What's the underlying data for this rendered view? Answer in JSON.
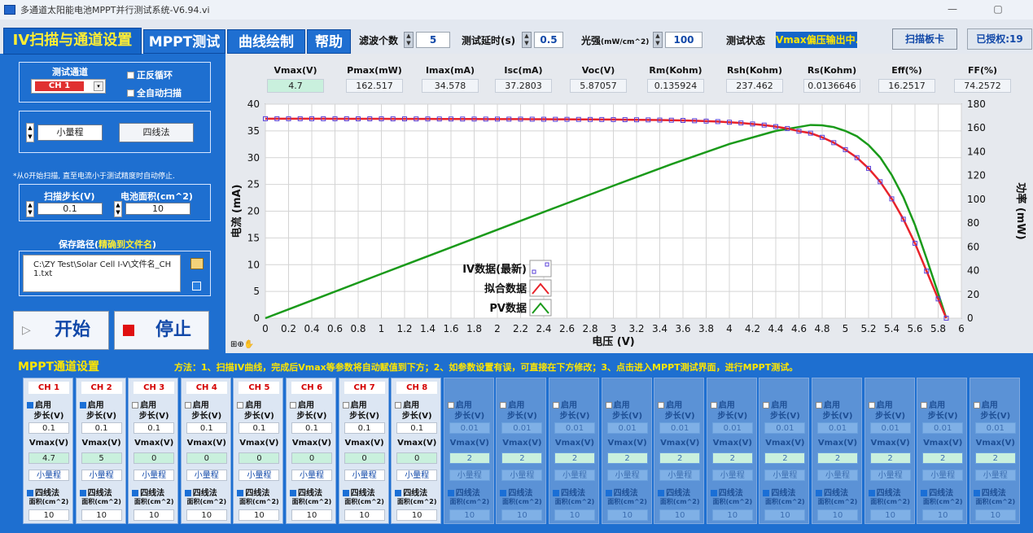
{
  "window": {
    "title": "多通道太阳能电池MPPT并行测试系统-V6.94.vi"
  },
  "tabs": [
    "IV扫描与通道设置",
    "MPPT测试",
    "曲线绘制",
    "帮助"
  ],
  "toolbar": {
    "filter_label": "滤波个数",
    "filter_value": "5",
    "delay_label": "测试延时(s)",
    "delay_value": "0.5",
    "light_label": "光强",
    "light_unit": "(mW/cm^2)",
    "light_value": "100",
    "status_label": "测试状态",
    "status_value": "Vmax偏压输出中..",
    "scan_button": "扫描板卡",
    "authorized": "已授权:19"
  },
  "left": {
    "channel_label": "测试通道",
    "channel_value": "CH 1",
    "cyc_label": "正反循环",
    "auto_label": "全自动扫描",
    "range_value": "小量程",
    "wire_button": "四线法",
    "note": "*从0开始扫描, 直至电流小于测试精度时自动停止.",
    "step_label": "扫描步长(V)",
    "step_value": "0.1",
    "area_label": "电池面积(cm^2)",
    "area_value": "10",
    "path_label": "保存路径(",
    "path_label_em": "精确到文件名",
    "path_label_end": ")",
    "path_value": "C:\\ZY Test\\Solar Cell I-V\\文件名_CH1.txt",
    "start_label": "开始",
    "stop_label": "停止"
  },
  "params": {
    "headers": [
      "Vmax(V)",
      "Pmax(mW)",
      "Imax(mA)",
      "Isc(mA)",
      "Voc(V)",
      "Rm(Kohm)",
      "Rsh(Kohm)",
      "Rs(Kohm)",
      "Eff(%)",
      "FF(%)"
    ],
    "values": [
      "4.7",
      "162.517",
      "34.578",
      "37.2803",
      "5.87057",
      "0.135924",
      "237.462",
      "0.0136646",
      "16.2517",
      "74.2572"
    ]
  },
  "chart_data": {
    "type": "line",
    "xlabel": "电压 (V)",
    "ylabel": "电流 (mA)",
    "y2label": "功率 (mW)",
    "xlim": [
      0,
      6
    ],
    "ylim": [
      0,
      40
    ],
    "y2lim": [
      0,
      180
    ],
    "x_ticks": [
      "0",
      "0.2",
      "0.4",
      "0.6",
      "0.8",
      "1",
      "1.2",
      "1.4",
      "1.6",
      "1.8",
      "2",
      "2.2",
      "2.4",
      "2.6",
      "2.8",
      "3",
      "3.2",
      "3.4",
      "3.6",
      "3.8",
      "4",
      "4.2",
      "4.4",
      "4.6",
      "4.8",
      "5",
      "5.2",
      "5.4",
      "5.6",
      "5.8",
      "6"
    ],
    "y_ticks": [
      "0",
      "5",
      "10",
      "15",
      "20",
      "25",
      "30",
      "35",
      "40"
    ],
    "y2_ticks": [
      "0",
      "20",
      "40",
      "60",
      "80",
      "100",
      "120",
      "140",
      "160",
      "180"
    ],
    "grid": true,
    "legend": [
      "IV数据(最新)",
      "拟合数据",
      "PV数据"
    ],
    "series_colors": {
      "iv": "#5a40d8",
      "fit": "#e8232a",
      "pv": "#1a9a1a"
    },
    "iv_points": [
      [
        0,
        37.28
      ],
      [
        0.1,
        37.28
      ],
      [
        0.2,
        37.28
      ],
      [
        0.3,
        37.28
      ],
      [
        0.4,
        37.28
      ],
      [
        0.5,
        37.28
      ],
      [
        0.6,
        37.27
      ],
      [
        0.7,
        37.27
      ],
      [
        0.8,
        37.26
      ],
      [
        0.9,
        37.26
      ],
      [
        1.0,
        37.26
      ],
      [
        1.1,
        37.25
      ],
      [
        1.2,
        37.25
      ],
      [
        1.3,
        37.24
      ],
      [
        1.4,
        37.24
      ],
      [
        1.5,
        37.23
      ],
      [
        1.6,
        37.23
      ],
      [
        1.7,
        37.22
      ],
      [
        1.8,
        37.22
      ],
      [
        1.9,
        37.21
      ],
      [
        2.0,
        37.21
      ],
      [
        2.1,
        37.2
      ],
      [
        2.2,
        37.2
      ],
      [
        2.3,
        37.19
      ],
      [
        2.4,
        37.18
      ],
      [
        2.5,
        37.17
      ],
      [
        2.6,
        37.16
      ],
      [
        2.7,
        37.15
      ],
      [
        2.8,
        37.14
      ],
      [
        2.9,
        37.13
      ],
      [
        3.0,
        37.12
      ],
      [
        3.1,
        37.1
      ],
      [
        3.2,
        37.08
      ],
      [
        3.3,
        37.06
      ],
      [
        3.4,
        37.03
      ],
      [
        3.5,
        37.0
      ],
      [
        3.6,
        36.96
      ],
      [
        3.7,
        36.9
      ],
      [
        3.8,
        36.83
      ],
      [
        3.9,
        36.74
      ],
      [
        4.0,
        36.62
      ],
      [
        4.1,
        36.48
      ],
      [
        4.2,
        36.3
      ],
      [
        4.3,
        36.09
      ],
      [
        4.4,
        35.8
      ],
      [
        4.5,
        35.45
      ],
      [
        4.6,
        34.95
      ],
      [
        4.7,
        34.58
      ],
      [
        4.8,
        33.8
      ],
      [
        4.9,
        32.8
      ],
      [
        5.0,
        31.5
      ],
      [
        5.1,
        30.0
      ],
      [
        5.2,
        28.0
      ],
      [
        5.3,
        25.5
      ],
      [
        5.4,
        22.3
      ],
      [
        5.5,
        18.5
      ],
      [
        5.6,
        14.0
      ],
      [
        5.7,
        8.8
      ],
      [
        5.8,
        3.6
      ],
      [
        5.87,
        0
      ]
    ],
    "pv_points": [
      [
        0,
        0
      ],
      [
        0.5,
        18.6
      ],
      [
        1.0,
        37.3
      ],
      [
        1.5,
        55.8
      ],
      [
        2.0,
        74.4
      ],
      [
        2.5,
        93.0
      ],
      [
        3.0,
        111.4
      ],
      [
        3.5,
        129.5
      ],
      [
        4.0,
        146.5
      ],
      [
        4.4,
        157.5
      ],
      [
        4.6,
        160.8
      ],
      [
        4.7,
        162.5
      ],
      [
        4.8,
        162.2
      ],
      [
        4.9,
        160.7
      ],
      [
        5.0,
        157.5
      ],
      [
        5.1,
        153.0
      ],
      [
        5.2,
        145.6
      ],
      [
        5.3,
        135.2
      ],
      [
        5.4,
        120.4
      ],
      [
        5.5,
        101.8
      ],
      [
        5.6,
        78.4
      ],
      [
        5.7,
        50.2
      ],
      [
        5.8,
        20.9
      ],
      [
        5.87,
        0
      ]
    ]
  },
  "mppt": {
    "title": "MPPT通道设置",
    "method": "方法：1、扫描IV曲线，完成后Vmax等参数将自动赋值到下方；2、如参数设置有误，可直接在下方修改；3、点击进入MPPT测试界面，进行MPPT测试。",
    "enable_label": "启用",
    "step_label": "步长(V)",
    "vmax_label": "Vmax(V)",
    "range_label": "小量程",
    "wire_label": "四线法",
    "area_label": "面积(cm^2)",
    "channels": [
      {
        "name": "CH 1",
        "enabled": true,
        "step": "0.1",
        "vmax": "4.7",
        "area": "10"
      },
      {
        "name": "CH 2",
        "enabled": true,
        "step": "0.1",
        "vmax": "5",
        "area": "10"
      },
      {
        "name": "CH 3",
        "enabled": false,
        "step": "0.1",
        "vmax": "0",
        "area": "10"
      },
      {
        "name": "CH 4",
        "enabled": false,
        "step": "0.1",
        "vmax": "0",
        "area": "10"
      },
      {
        "name": "CH 5",
        "enabled": false,
        "step": "0.1",
        "vmax": "0",
        "area": "10"
      },
      {
        "name": "CH 6",
        "enabled": false,
        "step": "0.1",
        "vmax": "0",
        "area": "10"
      },
      {
        "name": "CH 7",
        "enabled": false,
        "step": "0.1",
        "vmax": "0",
        "area": "10"
      },
      {
        "name": "CH 8",
        "enabled": false,
        "step": "0.1",
        "vmax": "0",
        "area": "10"
      }
    ],
    "inactive": {
      "step": "0.01",
      "vmax": "2",
      "area": "10"
    }
  }
}
